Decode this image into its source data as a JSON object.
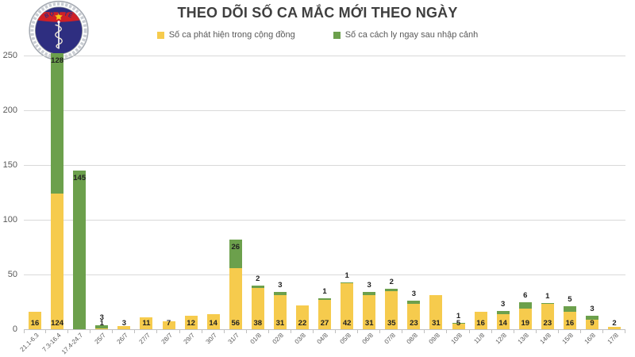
{
  "title": "THEO DÕI SỐ CA MẮC MỚI THEO NGÀY",
  "logo": {
    "top_text": "BỘ Y TẾ",
    "bottom_text": "MINISTRY OF HEALTH"
  },
  "legend": {
    "items": [
      {
        "label": "Số ca phát hiện trong cộng đồng",
        "color": "#F6CB4D"
      },
      {
        "label": "Số ca cách ly ngay sau nhập cảnh",
        "color": "#6CA04C"
      }
    ]
  },
  "colors": {
    "yellow": "#F6CB4D",
    "green": "#6CA04C",
    "title_text": "#3F3F3F",
    "axis_text": "#595959",
    "gridline": "#D9D9D9",
    "axis_line": "#BFBFBF",
    "bar_label_text": "#212121",
    "logo_navy": "#2E2E80",
    "logo_red": "#CF2027",
    "logo_gold": "#F5C518"
  },
  "chart_data": {
    "type": "bar",
    "stacked": true,
    "title": "THEO DÕI SỐ CA MẮC MỚI THEO NGÀY",
    "xlabel": "",
    "ylabel": "",
    "ylim": [
      0,
      250
    ],
    "yticks": [
      0,
      50,
      100,
      150,
      200,
      250
    ],
    "grid": true,
    "legend_position": "top",
    "bar_value_labels": true,
    "categories": [
      "21.1-6.3",
      "7.3-16.4",
      "17.4-24.7",
      "25/7",
      "26/7",
      "27/7",
      "28/7",
      "29/7",
      "30/7",
      "31/7",
      "01/8",
      "02/8",
      "03/8",
      "04/8",
      "05/8",
      "06/8",
      "07/8",
      "08/8",
      "09/8",
      "10/8",
      "11/8",
      "12/8",
      "13/8",
      "14/8",
      "15/8",
      "16/8",
      "17/8"
    ],
    "series": [
      {
        "name": "Số ca phát hiện trong cộng đồng",
        "color": "#F6CB4D",
        "values": [
          16,
          124,
          0,
          1,
          3,
          11,
          7,
          12,
          14,
          56,
          38,
          31,
          22,
          27,
          42,
          31,
          35,
          23,
          31,
          5,
          16,
          14,
          19,
          23,
          16,
          9,
          2
        ]
      },
      {
        "name": "Số ca cách ly ngay sau nhập cảnh",
        "color": "#6CA04C",
        "values": [
          0,
          128,
          145,
          3,
          0,
          0,
          0,
          0,
          0,
          26,
          2,
          3,
          0,
          1,
          1,
          3,
          2,
          3,
          0,
          1,
          0,
          3,
          6,
          1,
          5,
          3,
          0
        ]
      }
    ]
  }
}
